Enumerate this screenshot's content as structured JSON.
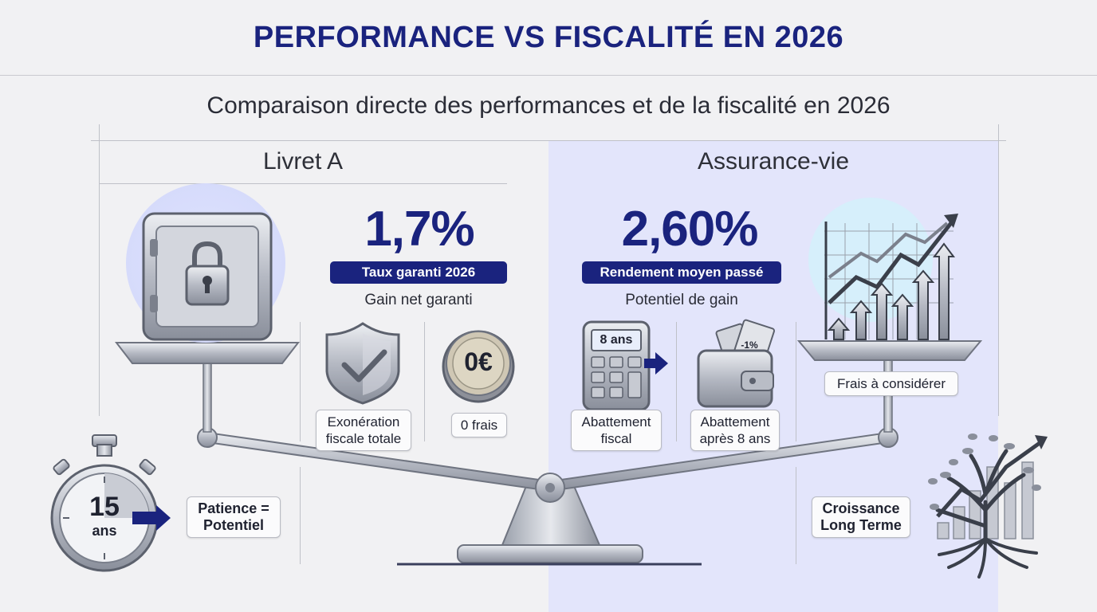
{
  "header": {
    "title": "PERFORMANCE VS FISCALITÉ EN 2026",
    "subtitle": "Comparaison directe des performances et de la fiscalité en 2026"
  },
  "colors": {
    "navy": "#1a237e",
    "panel_right": "#e3e5fb",
    "background": "#f1f1f3"
  },
  "left": {
    "title": "Livret A",
    "rate": "1,7%",
    "badge": "Taux garanti 2026",
    "caption": "Gain net garanti",
    "features": [
      {
        "icon": "shield-check-icon",
        "label": "Exonération fiscale totale"
      },
      {
        "icon": "zero-euro-coin-icon",
        "coin_text": "0€",
        "label": "0 frais"
      }
    ],
    "timer": {
      "icon": "stopwatch-icon",
      "value": "15",
      "unit": "ans",
      "label": "Patience = Potentiel"
    }
  },
  "right": {
    "title": "Assurance-vie",
    "rate": "2,60%",
    "badge": "Rendement moyen passé",
    "caption": "Potentiel de gain",
    "features": [
      {
        "icon": "calculator-icon",
        "screen_text": "8 ans",
        "label": "Abattement fiscal"
      },
      {
        "icon": "wallet-icon",
        "note_text": "-1%",
        "label": "Abattement après 8 ans"
      }
    ],
    "fees_label": "Frais à considérer",
    "growth": {
      "icon": "tree-growth-icon",
      "label": "Croissance Long Terme"
    }
  }
}
